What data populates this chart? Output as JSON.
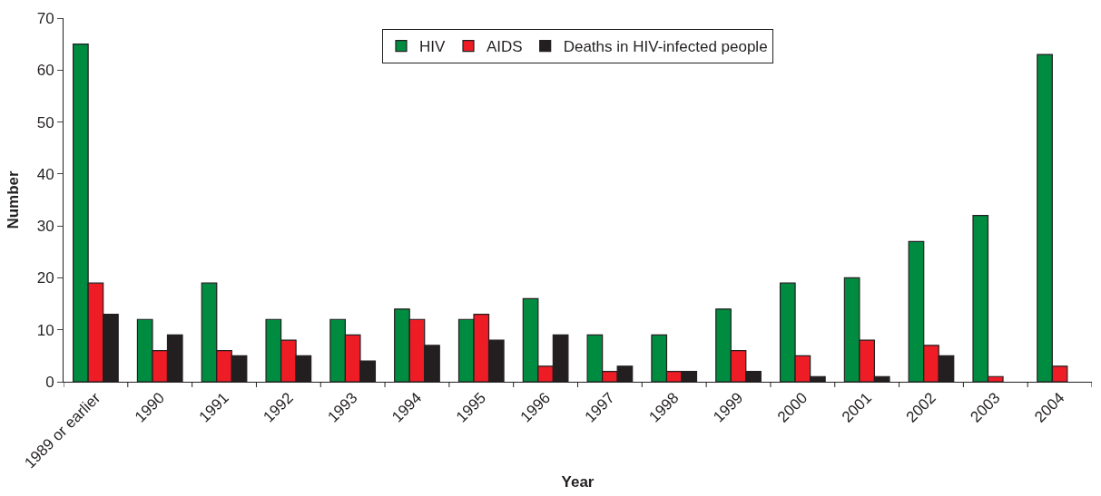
{
  "chart_data": {
    "type": "bar",
    "xlabel": "Year",
    "ylabel": "Number",
    "categories": [
      "1989 or earlier",
      "1990",
      "1991",
      "1992",
      "1993",
      "1994",
      "1995",
      "1996",
      "1997",
      "1998",
      "1999",
      "2000",
      "2001",
      "2002",
      "2003",
      "2004"
    ],
    "series": [
      {
        "name": "HIV",
        "color": "#008c40",
        "values": [
          65,
          12,
          19,
          12,
          12,
          14,
          12,
          16,
          9,
          9,
          14,
          19,
          20,
          27,
          32,
          63
        ]
      },
      {
        "name": "AIDS",
        "color": "#ee1c25",
        "values": [
          19,
          6,
          6,
          8,
          9,
          12,
          13,
          3,
          2,
          2,
          6,
          5,
          8,
          7,
          1,
          3
        ]
      },
      {
        "name": "Deaths in HIV-infected people",
        "color": "#231f20",
        "values": [
          13,
          9,
          5,
          5,
          4,
          7,
          8,
          9,
          3,
          2,
          2,
          1,
          1,
          5,
          null,
          null
        ]
      }
    ],
    "ylim": [
      0,
      70
    ],
    "yticks": [
      0,
      10,
      20,
      30,
      40,
      50,
      60,
      70
    ],
    "legend": "top"
  }
}
